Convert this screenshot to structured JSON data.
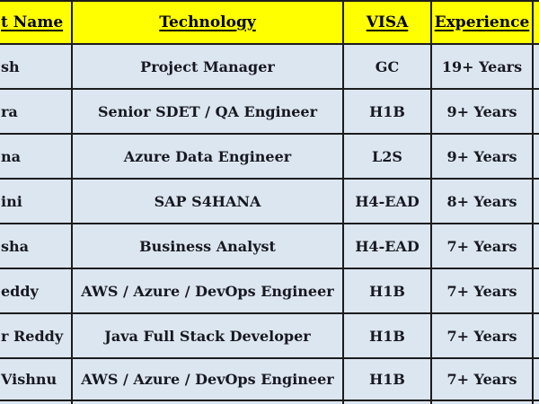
{
  "table": {
    "headers": {
      "name": "t Name",
      "technology": "Technology",
      "visa": "VISA",
      "experience": "Experience"
    },
    "rows": [
      {
        "name": "sh",
        "technology": "Project Manager",
        "visa": "GC",
        "experience": "19+ Years"
      },
      {
        "name": "ra",
        "technology": "Senior SDET / QA Engineer",
        "visa": "H1B",
        "experience": "9+ Years"
      },
      {
        "name": "na",
        "technology": "Azure Data Engineer",
        "visa": "L2S",
        "experience": "9+ Years"
      },
      {
        "name": "ini",
        "technology": "SAP S4HANA",
        "visa": "H4-EAD",
        "experience": "8+ Years"
      },
      {
        "name": "sha",
        "technology": "Business Analyst",
        "visa": "H4-EAD",
        "experience": "7+ Years"
      },
      {
        "name": "eddy",
        "technology": "AWS / Azure / DevOps Engineer",
        "visa": "H1B",
        "experience": "7+ Years"
      },
      {
        "name": "r Reddy",
        "technology": "Java Full Stack Developer",
        "visa": "H1B",
        "experience": "7+ Years"
      },
      {
        "name": "Vishnu",
        "technology": "AWS / Azure / DevOps Engineer",
        "visa": "H1B",
        "experience": "7+ Years"
      }
    ],
    "colors": {
      "header_bg": "#ffff00",
      "row_bg": "#dce6f1",
      "border": "#1c1c1c",
      "text": "#181820"
    }
  }
}
